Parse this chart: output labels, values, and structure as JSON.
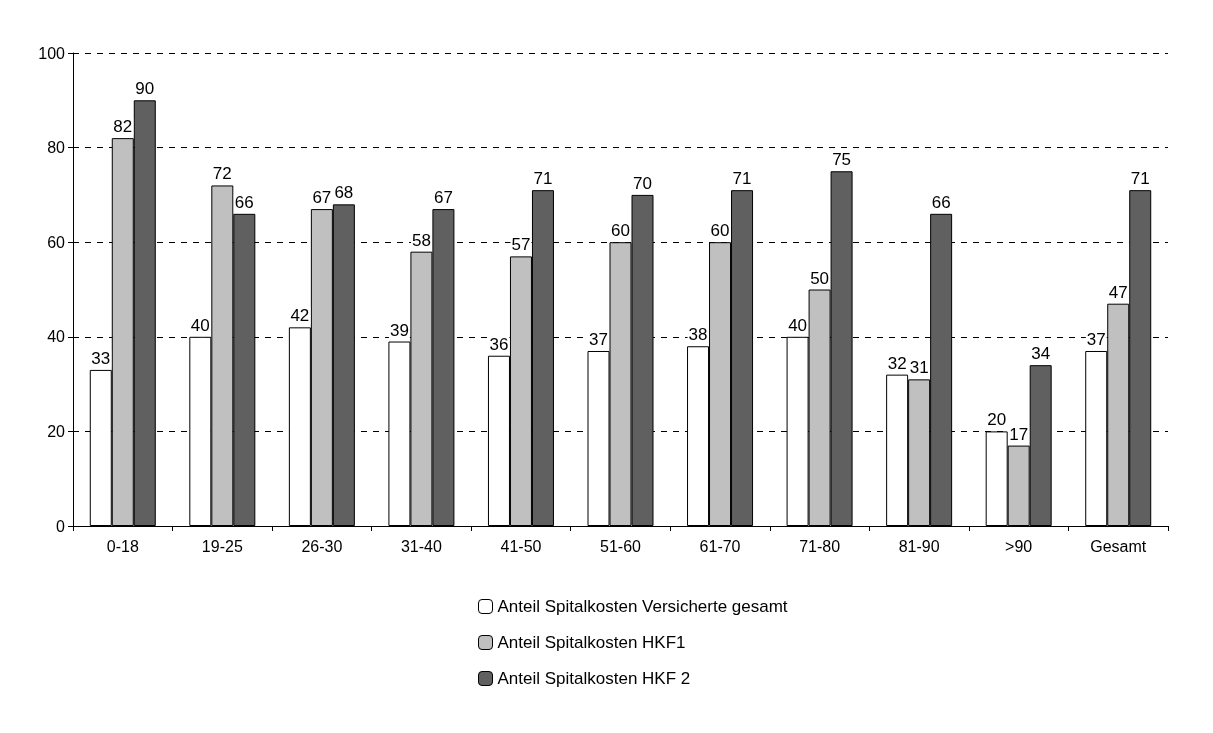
{
  "chart_data": {
    "type": "bar",
    "categories": [
      "0-18",
      "19-25",
      "26-30",
      "31-40",
      "41-50",
      "51-60",
      "61-70",
      "71-80",
      "81-90",
      ">90",
      "Gesamt"
    ],
    "series": [
      {
        "name": "Anteil Spitalkosten Versicherte gesamt",
        "color": "#ffffff",
        "values": [
          33,
          40,
          42,
          39,
          36,
          37,
          38,
          40,
          32,
          20,
          37
        ]
      },
      {
        "name": "Anteil Spitalkosten HKF1",
        "color": "#c0c0c0",
        "values": [
          82,
          72,
          67,
          58,
          57,
          60,
          60,
          50,
          31,
          17,
          47
        ]
      },
      {
        "name": "Anteil Spitalkosten HKF 2",
        "color": "#606060",
        "values": [
          90,
          66,
          68,
          67,
          71,
          70,
          71,
          75,
          66,
          34,
          71
        ]
      }
    ],
    "ylim": [
      0,
      100
    ],
    "yticks": [
      0,
      20,
      40,
      60,
      80,
      100
    ],
    "grid": "y",
    "legend": "bottom",
    "data_labels": true
  }
}
